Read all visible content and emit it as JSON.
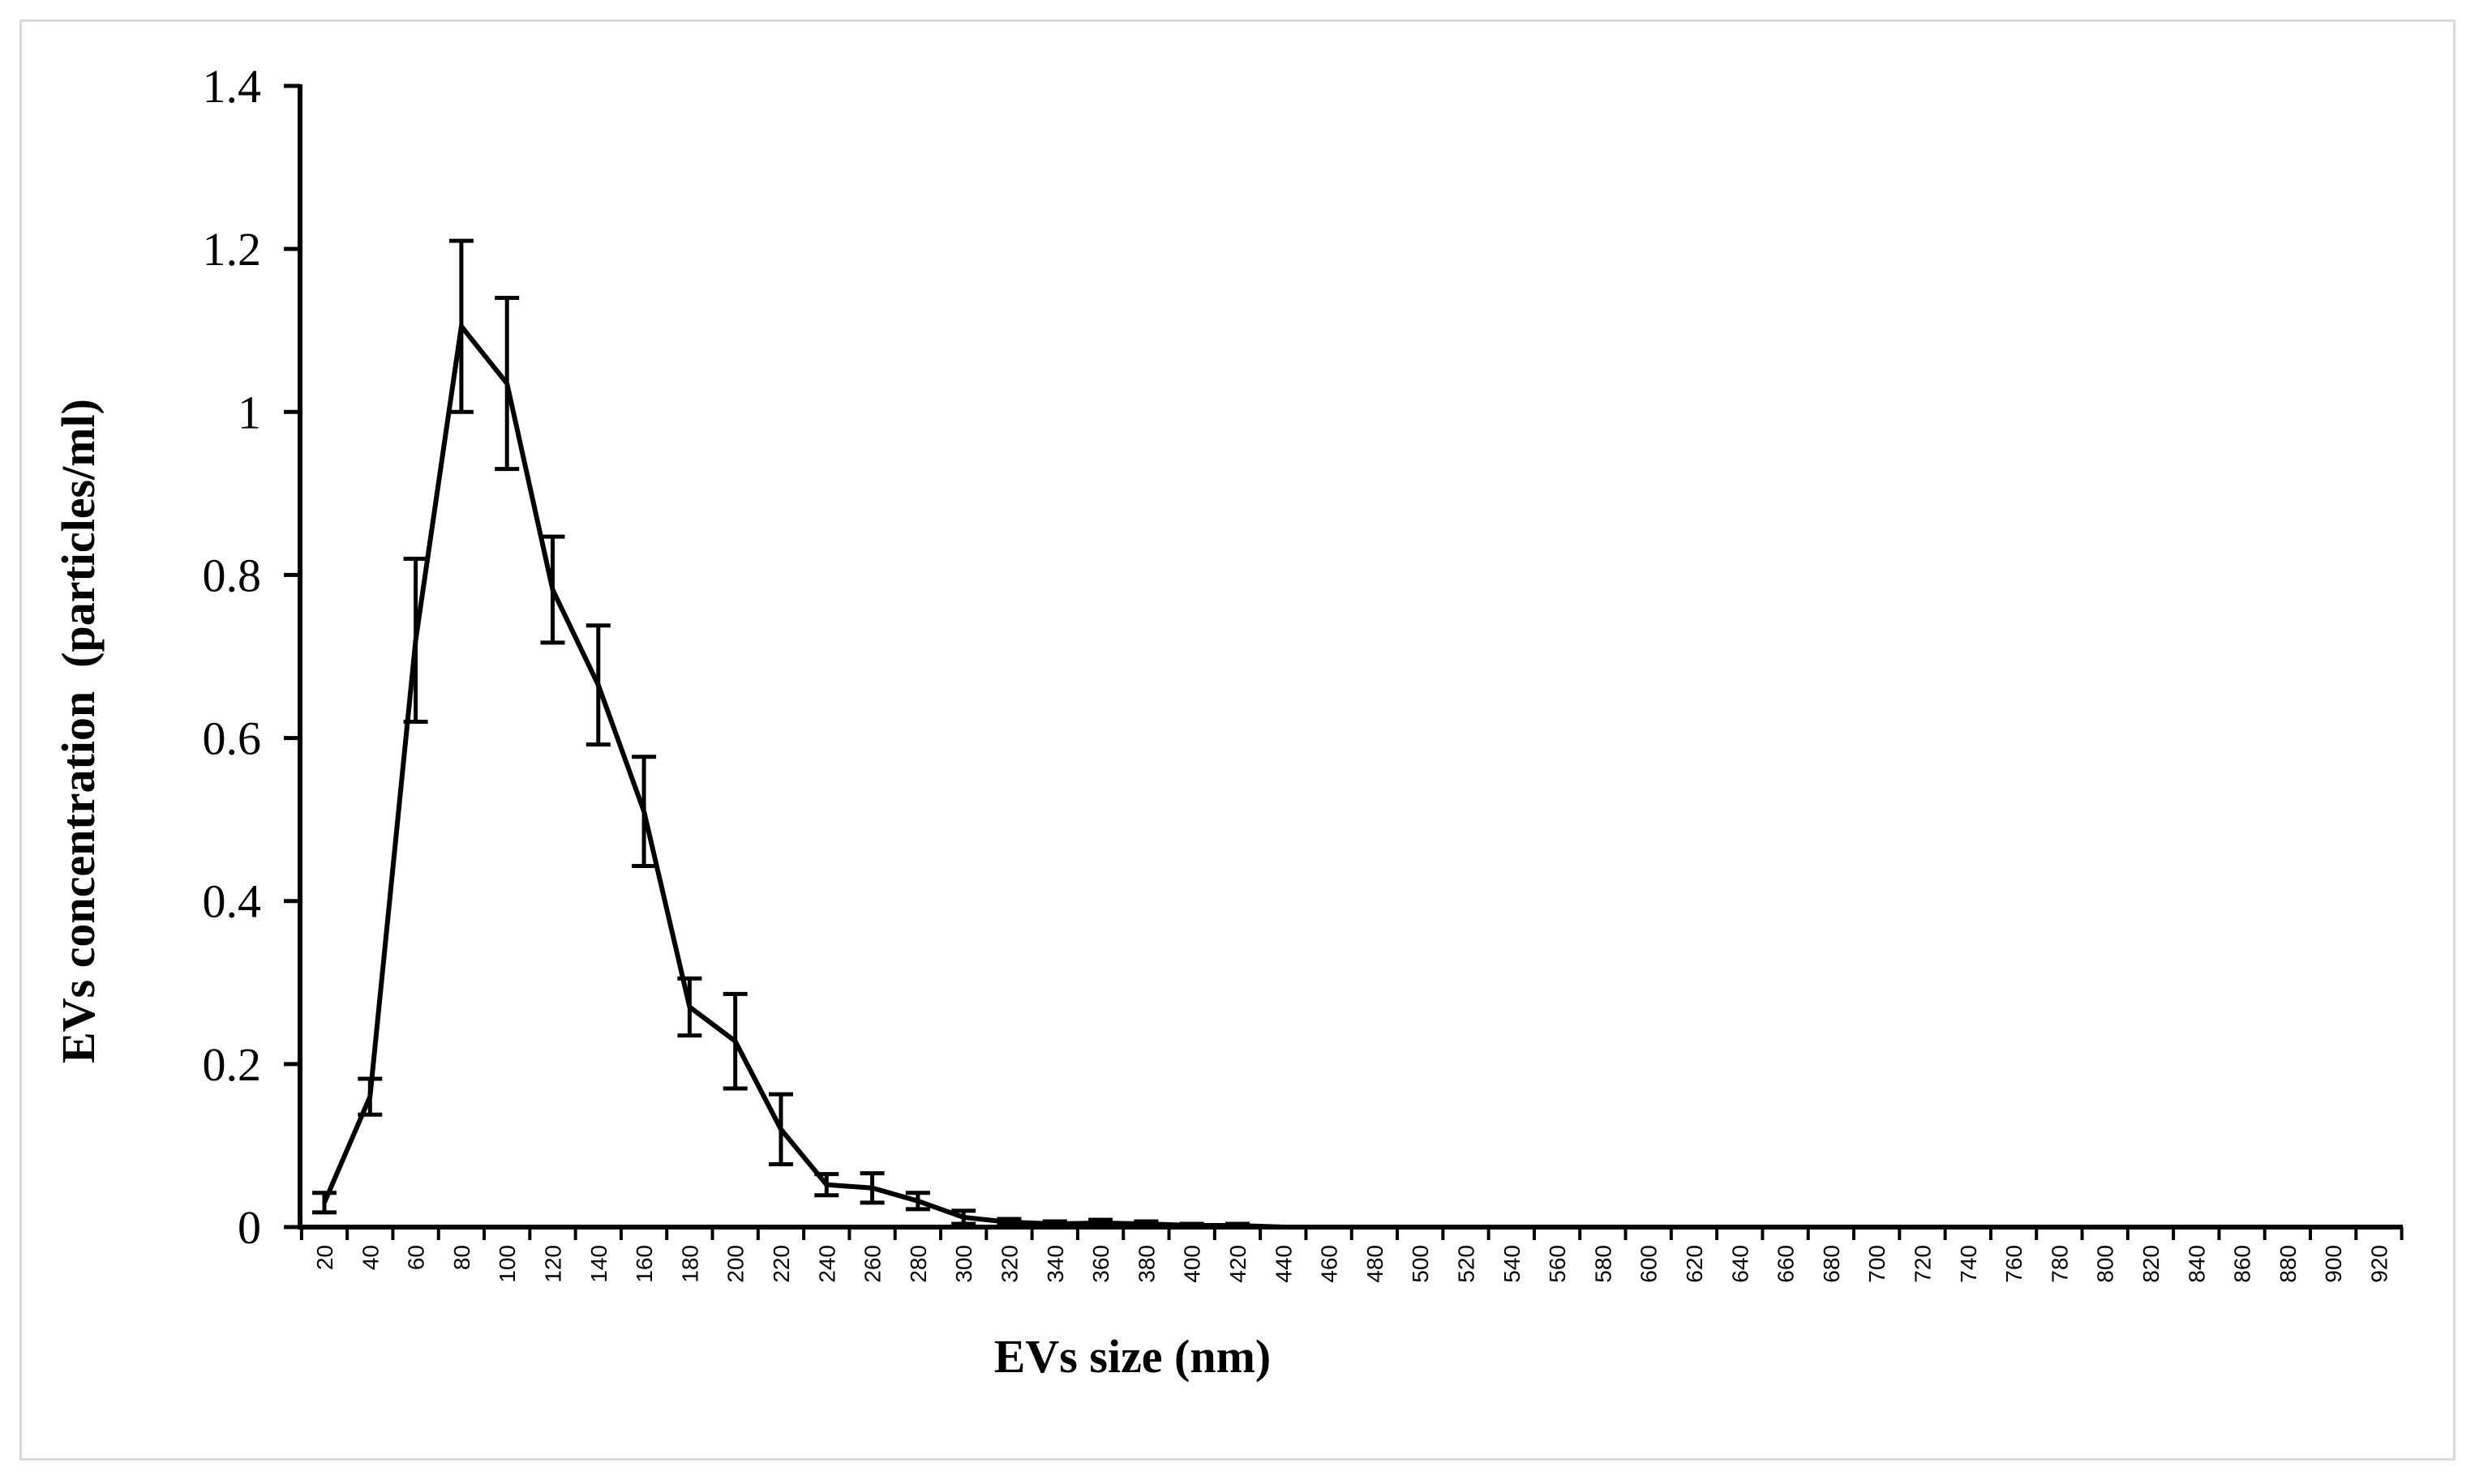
{
  "chart_data": {
    "type": "line",
    "title": "",
    "xlabel": "EVs size (nm)",
    "ylabel": "EVs concentration  (particles/ml)",
    "ylim": [
      0,
      1.4
    ],
    "yticks": [
      "0",
      "0.2",
      "0.4",
      "0.6",
      "0.8",
      "1",
      "1.2",
      "1.4"
    ],
    "yticks_values": [
      0,
      0.2,
      0.4,
      0.6,
      0.8,
      1.0,
      1.2,
      1.4
    ],
    "categories": [
      "20",
      "40",
      "60",
      "80",
      "100",
      "120",
      "140",
      "160",
      "180",
      "200",
      "220",
      "240",
      "260",
      "280",
      "300",
      "320",
      "340",
      "360",
      "380",
      "400",
      "420",
      "440",
      "460",
      "480",
      "500",
      "520",
      "540",
      "560",
      "580",
      "600",
      "620",
      "640",
      "660",
      "680",
      "700",
      "720",
      "740",
      "760",
      "780",
      "800",
      "820",
      "840",
      "860",
      "880",
      "900",
      "920"
    ],
    "grid": false,
    "legend": "none",
    "line_color": "#000000",
    "series": [
      {
        "values": [
          0.03,
          0.16,
          0.72,
          1.105,
          1.035,
          0.782,
          0.665,
          0.51,
          0.27,
          0.228,
          0.12,
          0.052,
          0.048,
          0.032,
          0.012,
          0.006,
          0.004,
          0.005,
          0.004,
          0.002,
          0.002,
          0,
          0,
          0,
          0,
          0,
          0,
          0,
          0,
          0,
          0,
          0,
          0,
          0,
          0,
          0,
          0,
          0,
          0,
          0,
          0,
          0,
          0,
          0,
          0,
          0
        ],
        "error": [
          0.012,
          0.022,
          0.1,
          0.105,
          0.105,
          0.065,
          0.073,
          0.067,
          0.035,
          0.058,
          0.043,
          0.013,
          0.018,
          0.01,
          0.008,
          0.004,
          0.003,
          0.004,
          0.003,
          0.002,
          0.002,
          0,
          0,
          0,
          0,
          0,
          0,
          0,
          0,
          0,
          0,
          0,
          0,
          0,
          0,
          0,
          0,
          0,
          0,
          0,
          0,
          0,
          0,
          0,
          0,
          0
        ]
      }
    ]
  }
}
